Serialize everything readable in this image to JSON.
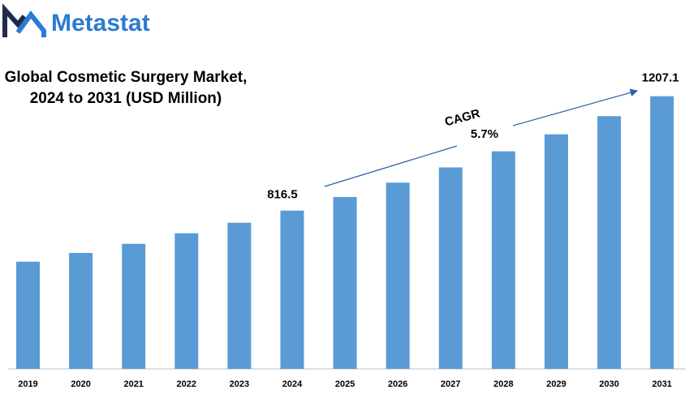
{
  "chart_data": {
    "type": "bar",
    "brand": "Metastat",
    "title": [
      "Global Cosmetic Surgery Market,",
      "2024 to 2031 (USD Million)"
    ],
    "categories": [
      "2019",
      "2020",
      "2021",
      "2022",
      "2023",
      "2024",
      "2025",
      "2026",
      "2027",
      "2028",
      "2029",
      "2030",
      "2031"
    ],
    "values": [
      642,
      672,
      703,
      739,
      775,
      816.5,
      863,
      912,
      964,
      1019,
      1077,
      1139,
      1207.1
    ],
    "labeled_indices": [
      5,
      12
    ],
    "color": "#5b9bd5",
    "ylim": [
      276,
      1400
    ],
    "annotation": {
      "label": "CAGR",
      "value": "5.7%"
    }
  }
}
